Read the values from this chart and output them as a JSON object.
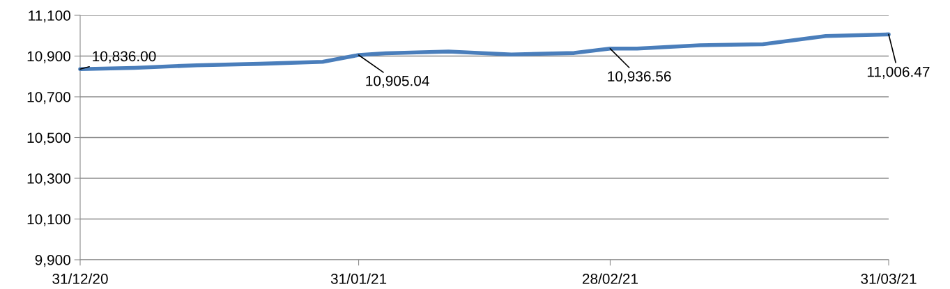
{
  "chart_data": {
    "type": "line",
    "x": [
      "2020-12-31",
      "2021-01-06",
      "2021-01-13",
      "2021-01-20",
      "2021-01-27",
      "2021-01-31",
      "2021-02-03",
      "2021-02-10",
      "2021-02-17",
      "2021-02-24",
      "2021-02-28",
      "2021-03-03",
      "2021-03-10",
      "2021-03-17",
      "2021-03-24",
      "2021-03-31"
    ],
    "series": [
      {
        "color": "#4a7ebb",
        "values": [
          10836.0,
          10842,
          10855,
          10862,
          10872,
          10905.04,
          10914,
          10922,
          10908,
          10915,
          10936.56,
          10937,
          10953,
          10958,
          10998,
          11006.47
        ]
      }
    ],
    "ylim": [
      9900,
      11100
    ],
    "yticks": [
      {
        "value": 9900,
        "label": "9,900"
      },
      {
        "value": 10100,
        "label": "10,100"
      },
      {
        "value": 10300,
        "label": "10,300"
      },
      {
        "value": 10500,
        "label": "10,500"
      },
      {
        "value": 10700,
        "label": "10,700"
      },
      {
        "value": 10900,
        "label": "10,900"
      },
      {
        "value": 11100,
        "label": "11,100"
      }
    ],
    "xlim": [
      "2020-12-31",
      "2021-03-31"
    ],
    "xticks": [
      {
        "value": "2020-12-31",
        "label": "31/12/20"
      },
      {
        "value": "2021-01-31",
        "label": "31/01/21"
      },
      {
        "value": "2021-02-28",
        "label": "28/02/21"
      },
      {
        "value": "2021-03-31",
        "label": "31/03/21"
      }
    ],
    "annotations": [
      {
        "text": "10,836.00",
        "x": "2020-12-31",
        "y": 10836.0
      },
      {
        "text": "10,905.04",
        "x": "2021-01-31",
        "y": 10905.04
      },
      {
        "text": "10,936.56",
        "x": "2021-02-28",
        "y": 10936.56
      },
      {
        "text": "11,006.47",
        "x": "2021-03-31",
        "y": 11006.47
      }
    ],
    "grid": "y",
    "marker": "none",
    "line_style": "solid"
  }
}
